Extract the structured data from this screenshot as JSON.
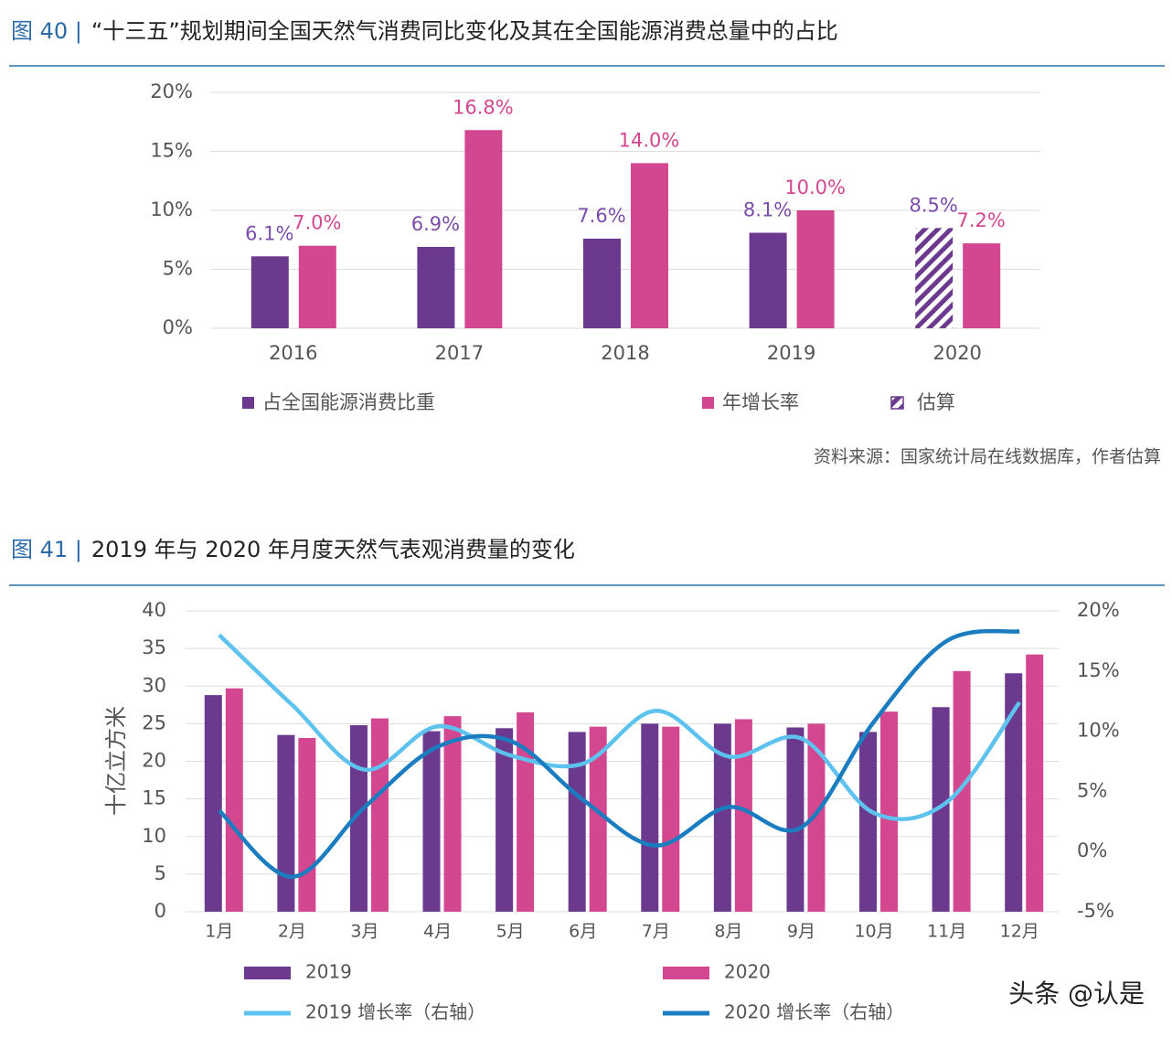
{
  "chart_data": [
    {
      "type": "bar",
      "figure_label": "图 40 |",
      "title": "“十三五”规划期间全国天然气消费同比变化及其在全国能源消费总量中的占比",
      "categories": [
        "2016",
        "2017",
        "2018",
        "2019",
        "2020"
      ],
      "series": [
        {
          "name": "占全国能源消费比重",
          "color": "#6b3a8e",
          "values": [
            6.1,
            6.9,
            7.6,
            8.1,
            8.5
          ],
          "value_labels": [
            "6.1%",
            "6.9%",
            "7.6%",
            "8.1%",
            "8.5%"
          ]
        },
        {
          "name": "年增长率",
          "color": "#d2478f",
          "values": [
            7.0,
            16.8,
            14.0,
            10.0,
            7.2
          ],
          "value_labels": [
            "7.0%",
            "16.8%",
            "14.0%",
            "10.0%",
            "7.2%"
          ]
        }
      ],
      "estimate": {
        "label": "估算",
        "series": 0,
        "index": 4
      },
      "ylim": [
        0,
        20
      ],
      "yticks": [
        {
          "value": 0,
          "label": "0%"
        },
        {
          "value": 5,
          "label": "5%"
        },
        {
          "value": 10,
          "label": "10%"
        },
        {
          "value": 15,
          "label": "15%"
        },
        {
          "value": 20,
          "label": "20%"
        }
      ],
      "grid": true,
      "source": "资料来源：国家统计局在线数据库，作者估算"
    },
    {
      "type": "combo",
      "figure_label": "图 41 |",
      "title": "2019 年与 2020 年月度天然气表观消费量的变化",
      "categories": [
        "1月",
        "2月",
        "3月",
        "4月",
        "5月",
        "6月",
        "7月",
        "8月",
        "9月",
        "10月",
        "11月",
        "12月"
      ],
      "y_label": "十亿立方米",
      "series": [
        {
          "name": "2019",
          "type": "bar",
          "color": "#6b3a8e",
          "values": [
            28.8,
            23.5,
            24.8,
            24.0,
            24.4,
            23.9,
            25.0,
            25.0,
            24.5,
            23.9,
            27.2,
            31.7
          ]
        },
        {
          "name": "2020",
          "type": "bar",
          "color": "#d2478f",
          "values": [
            29.7,
            23.1,
            25.7,
            26.0,
            26.5,
            24.6,
            24.6,
            25.6,
            25.0,
            26.6,
            32.0,
            34.2
          ]
        },
        {
          "name": "2019 增长率（右轴）",
          "type": "line",
          "axis": "y2",
          "color": "#5ec2ee",
          "values": [
            18.0,
            12.2,
            6.8,
            10.4,
            8.0,
            7.3,
            11.7,
            7.9,
            9.4,
            3.2,
            4.1,
            12.4
          ]
        },
        {
          "name": "2020 增长率（右轴）",
          "type": "line",
          "axis": "y2",
          "color": "#1b7dc0",
          "values": [
            3.4,
            -2.1,
            3.7,
            8.7,
            9.2,
            4.3,
            0.5,
            3.7,
            2.0,
            10.8,
            17.5,
            18.3
          ]
        }
      ],
      "ylim": [
        0,
        40
      ],
      "yticks": [
        0,
        5,
        10,
        15,
        20,
        25,
        30,
        35,
        40
      ],
      "y2lim": [
        -5,
        20
      ],
      "y2ticks": [
        {
          "value": -5,
          "label": "-5%"
        },
        {
          "value": 0,
          "label": "0%"
        },
        {
          "value": 5,
          "label": "5%"
        },
        {
          "value": 10,
          "label": "10%"
        },
        {
          "value": 15,
          "label": "15%"
        },
        {
          "value": 20,
          "label": "20%"
        }
      ],
      "grid": true,
      "watermark": "头条 @认是"
    }
  ]
}
